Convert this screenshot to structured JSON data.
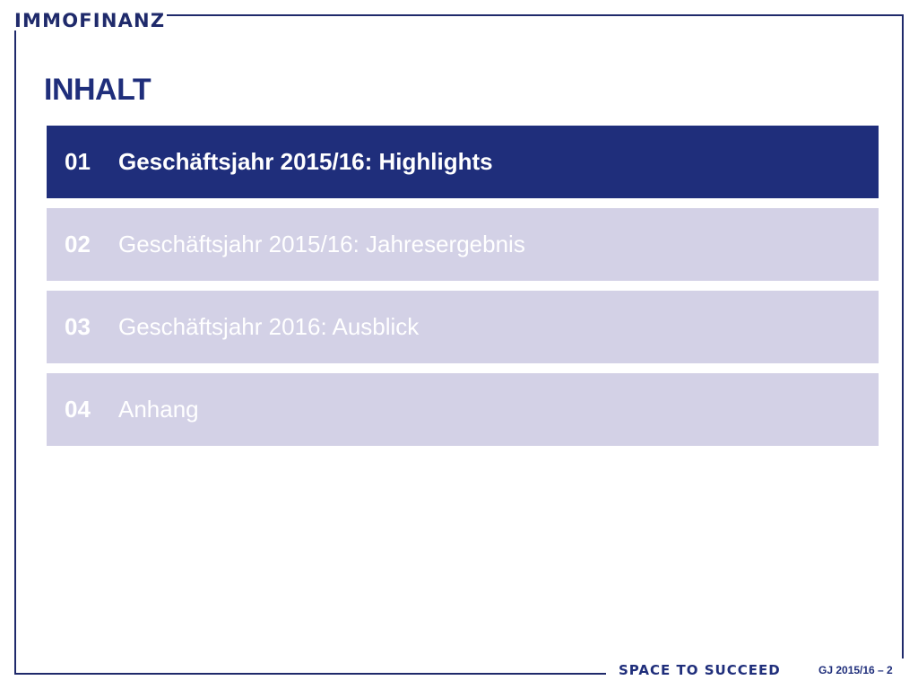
{
  "header": {
    "logo_text": "IMMOFINANZ"
  },
  "page_title": "INHALT",
  "toc": {
    "items": [
      {
        "number": "01",
        "label": "Geschäftsjahr 2015/16: Highlights",
        "active": true
      },
      {
        "number": "02",
        "label": "Geschäftsjahr 2015/16: Jahresergebnis",
        "active": false
      },
      {
        "number": "03",
        "label": "Geschäftsjahr 2016: Ausblick",
        "active": false
      },
      {
        "number": "04",
        "label": "Anhang",
        "active": false
      }
    ]
  },
  "footer": {
    "slogan": "SPACE TO SUCCEED",
    "page_info": "GJ 2015/16  –  2"
  },
  "colors": {
    "brand_navy": "#1f2e7b",
    "inactive_item": "#d3d1e6"
  }
}
